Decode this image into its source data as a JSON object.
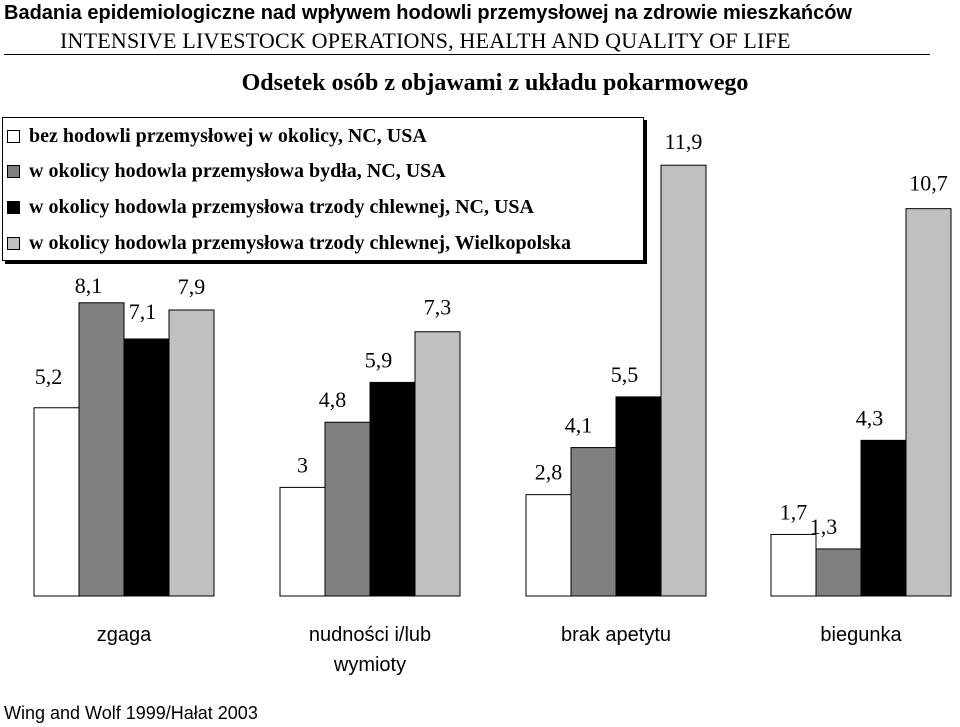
{
  "header": {
    "title": "Badania epidemiologiczne nad wpływem hodowli przemysłowej na zdrowie mieszkańców",
    "subtitle": "INTENSIVE LIVESTOCK OPERATIONS, HEALTH AND QUALITY OF LIFE"
  },
  "source": "Wing and Wolf 1999/Hałat 2003",
  "colors": {
    "series_0": "#ffffff",
    "series_1": "#808080",
    "series_2": "#000000",
    "series_3": "#c0c0c0",
    "bar_stroke": "#000000"
  },
  "chart_data": {
    "type": "bar",
    "title": "Odsetek osób z objawami z układu pokarmowego",
    "xlabel": "",
    "ylabel": "",
    "ylim": [
      0,
      13
    ],
    "grid": false,
    "legend_position": "top-left",
    "categories": [
      "zgaga",
      "nudności i/lub wymioty",
      "brak apetytu",
      "biegunka"
    ],
    "series": [
      {
        "name": "bez hodowli przemysłowej w okolicy, NC, USA",
        "values": [
          5.2,
          3,
          2.8,
          1.7
        ],
        "labels": [
          "5,2",
          "3",
          "2,8",
          "1,7"
        ]
      },
      {
        "name": "w okolicy hodowla przemysłowa bydła, NC, USA",
        "values": [
          8.1,
          4.8,
          4.1,
          1.3
        ],
        "labels": [
          "8,1",
          "4,8",
          "4,1",
          "1,3"
        ]
      },
      {
        "name": "w okolicy hodowla przemysłowa trzody chlewnej, NC, USA",
        "values": [
          7.1,
          5.9,
          5.5,
          4.3
        ],
        "labels": [
          "7,1",
          "5,9",
          "5,5",
          "4,3"
        ]
      },
      {
        "name": "w okolicy hodowla przemysłowa trzody chlewnej, Wielkopolska",
        "values": [
          7.9,
          7.3,
          11.9,
          10.7
        ],
        "labels": [
          "7,9",
          "7,3",
          "11,9",
          "10,7"
        ]
      }
    ]
  }
}
